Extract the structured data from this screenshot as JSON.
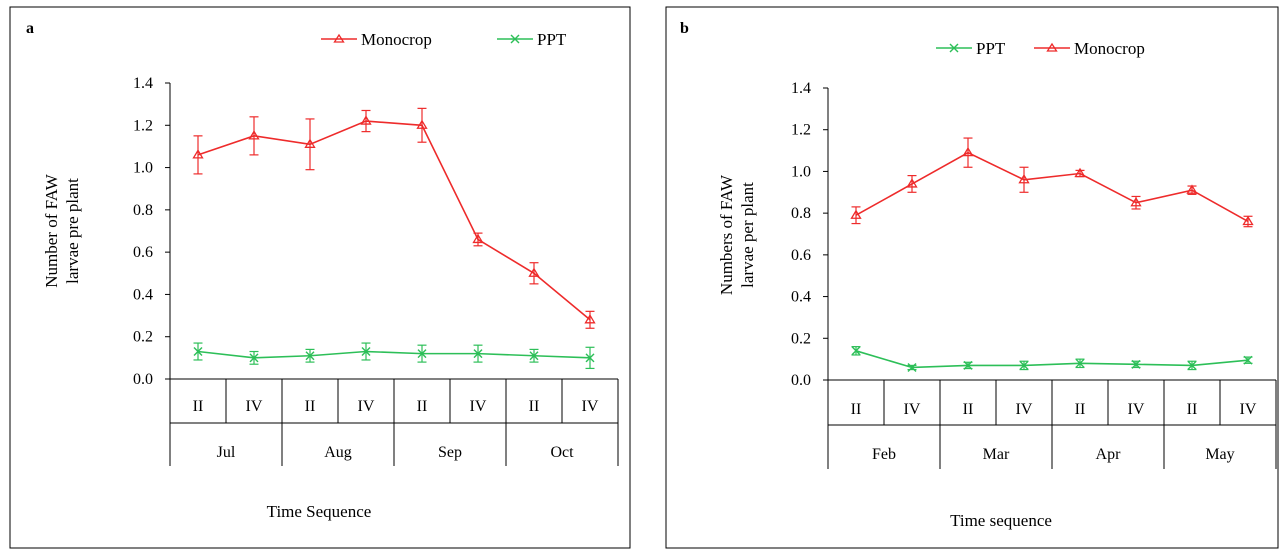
{
  "colors": {
    "monocrop": "#ee2b2b",
    "ppt": "#2dbf58",
    "axis": "#000000"
  },
  "chart_data": [
    {
      "type": "line",
      "panel": "a",
      "legend_order": [
        "Monocrop",
        "PPT"
      ],
      "legend_position": "top",
      "ylabel_line1": "Number  of  FAW",
      "ylabel_line2": "larvae  pre plant",
      "xlabel": "Time  Sequence",
      "ylim": [
        0,
        1.4
      ],
      "yticks": [
        "0.0",
        "0.2",
        "0.4",
        "0.6",
        "0.8",
        "1.0",
        "1.2",
        "1.4"
      ],
      "ytick_values": [
        0,
        0.2,
        0.4,
        0.6,
        0.8,
        1.0,
        1.2,
        1.4
      ],
      "categories": [
        "II",
        "IV",
        "II",
        "IV",
        "II",
        "IV",
        "II",
        "IV"
      ],
      "groups": [
        "Jul",
        "Aug",
        "Sep",
        "Oct"
      ],
      "grid": false,
      "series": [
        {
          "name": "Monocrop",
          "marker": "triangle",
          "values": [
            1.06,
            1.15,
            1.11,
            1.22,
            1.2,
            0.66,
            0.5,
            0.28
          ],
          "errors": [
            0.09,
            0.09,
            0.12,
            0.05,
            0.08,
            0.03,
            0.05,
            0.04
          ]
        },
        {
          "name": "PPT",
          "marker": "x",
          "values": [
            0.13,
            0.1,
            0.11,
            0.13,
            0.12,
            0.12,
            0.11,
            0.1
          ],
          "errors": [
            0.04,
            0.03,
            0.03,
            0.04,
            0.04,
            0.04,
            0.03,
            0.05
          ]
        }
      ]
    },
    {
      "type": "line",
      "panel": "b",
      "legend_order": [
        "PPT",
        "Monocrop"
      ],
      "legend_position": "top",
      "ylabel_line1": "Numbers  of  FAW",
      "ylabel_line2": "larvae  per plant",
      "xlabel": "Time  sequence",
      "ylim": [
        0,
        1.4
      ],
      "yticks": [
        "0.0",
        "0.2",
        "0.4",
        "0.6",
        "0.8",
        "1.0",
        "1.2",
        "1.4"
      ],
      "ytick_values": [
        0,
        0.2,
        0.4,
        0.6,
        0.8,
        1.0,
        1.2,
        1.4
      ],
      "categories": [
        "II",
        "IV",
        "II",
        "IV",
        "II",
        "IV",
        "II",
        "IV"
      ],
      "groups": [
        "Feb",
        "Mar",
        "Apr",
        "May"
      ],
      "grid": false,
      "series": [
        {
          "name": "Monocrop",
          "marker": "triangle",
          "values": [
            0.79,
            0.94,
            1.09,
            0.96,
            0.99,
            0.85,
            0.91,
            0.76
          ],
          "errors": [
            0.04,
            0.04,
            0.07,
            0.06,
            0.015,
            0.03,
            0.02,
            0.025
          ]
        },
        {
          "name": "PPT",
          "marker": "x",
          "values": [
            0.14,
            0.06,
            0.07,
            0.07,
            0.08,
            0.075,
            0.07,
            0.095
          ],
          "errors": [
            0.02,
            0.01,
            0.015,
            0.02,
            0.02,
            0.015,
            0.02,
            0.015
          ]
        }
      ]
    }
  ]
}
